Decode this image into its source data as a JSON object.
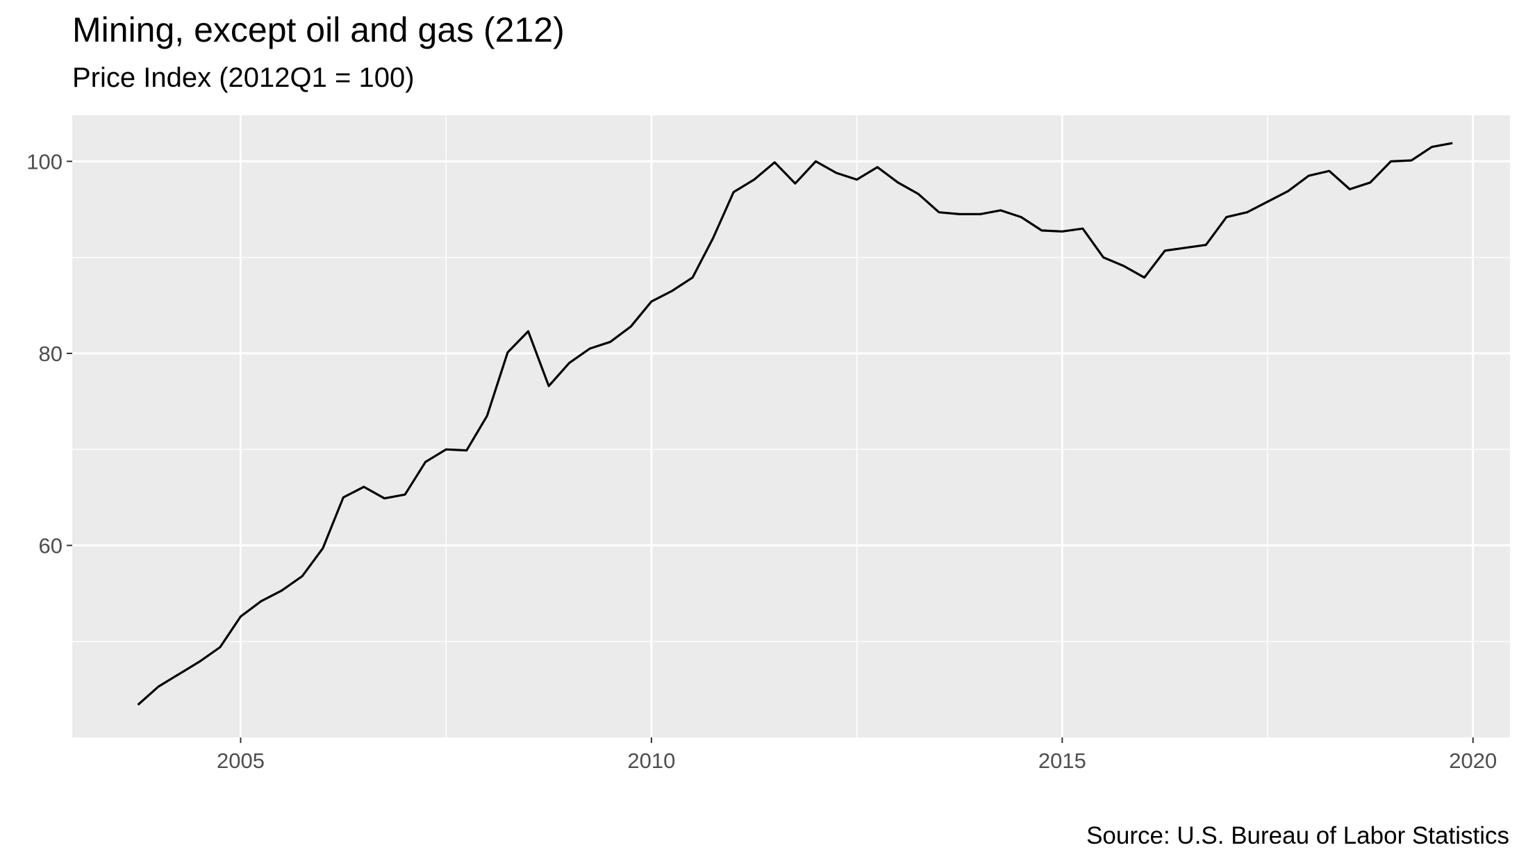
{
  "chart_data": {
    "type": "line",
    "title": "Mining, except oil and gas (212)",
    "subtitle": "Price Index (2012Q1 = 100)",
    "caption": "Source: U.S. Bureau of Labor Statistics",
    "xlabel": "",
    "ylabel": "",
    "xlim": [
      2002.95,
      2020.45
    ],
    "ylim": [
      40.0,
      104.8
    ],
    "x_ticks": [
      2005,
      2010,
      2015,
      2020
    ],
    "y_ticks": [
      60,
      80,
      100
    ],
    "grid": true,
    "legend": "none",
    "colors": {
      "panel": "#ebebeb",
      "grid": "#ffffff",
      "line": "#000000",
      "tick_text": "#4d4d4d"
    },
    "series": [
      {
        "x": [
          2003.75,
          2004.0,
          2004.25,
          2004.5,
          2004.75,
          2005.0,
          2005.25,
          2005.5,
          2005.75,
          2006.0,
          2006.25,
          2006.5,
          2006.75,
          2007.0,
          2007.25,
          2007.5,
          2007.75,
          2008.0,
          2008.25,
          2008.5,
          2008.75,
          2009.0,
          2009.25,
          2009.5,
          2009.75,
          2010.0,
          2010.25,
          2010.5,
          2010.75,
          2011.0,
          2011.25,
          2011.5,
          2011.75,
          2012.0,
          2012.25,
          2012.5,
          2012.75,
          2013.0,
          2013.25,
          2013.5,
          2013.75,
          2014.0,
          2014.25,
          2014.5,
          2014.75,
          2015.0,
          2015.25,
          2015.5,
          2015.75,
          2016.0,
          2016.25,
          2016.5,
          2016.75,
          2017.0,
          2017.25,
          2017.5,
          2017.75,
          2018.0,
          2018.25,
          2018.5,
          2018.75,
          2019.0,
          2019.25,
          2019.5,
          2019.75
        ],
        "values": [
          43.4,
          45.3,
          46.6,
          47.9,
          49.4,
          52.6,
          54.2,
          55.3,
          56.8,
          59.7,
          65.0,
          66.1,
          64.9,
          65.3,
          68.7,
          70.0,
          69.9,
          73.5,
          80.1,
          82.3,
          76.6,
          79.0,
          80.5,
          81.2,
          82.8,
          85.4,
          86.5,
          87.9,
          92.0,
          96.8,
          98.1,
          99.9,
          97.7,
          100.0,
          98.8,
          98.1,
          99.4,
          97.8,
          96.6,
          94.7,
          94.5,
          94.5,
          94.9,
          94.2,
          92.8,
          92.7,
          93.0,
          90.0,
          89.1,
          87.9,
          90.7,
          91.0,
          91.3,
          94.2,
          94.7,
          95.8,
          96.9,
          98.5,
          99.0,
          97.1,
          97.8,
          100.0,
          100.1,
          101.5,
          101.9
        ]
      }
    ]
  }
}
